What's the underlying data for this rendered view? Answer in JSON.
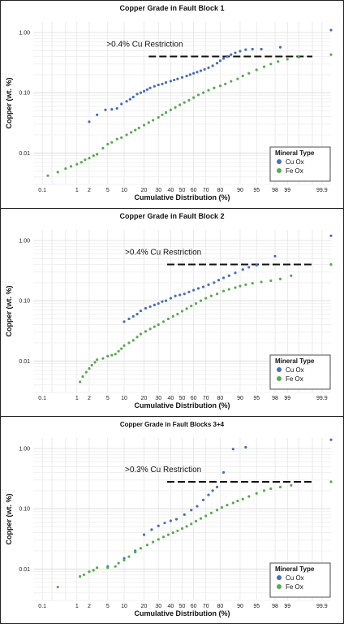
{
  "chart_data": [
    {
      "type": "scatter",
      "title": "Copper Grade in  Fault Block 1",
      "xlabel": "Cumulative Distribution (%)",
      "ylabel": "Copper (wt. %)",
      "x_scale": "probability",
      "y_scale": "log",
      "x_ticks": [
        "0.1",
        "1",
        "2",
        "5",
        "10",
        "20",
        "30",
        "40",
        "50",
        "60",
        "70",
        "80",
        "90",
        "95",
        "98",
        "99",
        "99.9"
      ],
      "y_ticks": [
        "0.01",
        "0.10",
        "1.00"
      ],
      "ylim": [
        0.003,
        1.5
      ],
      "grid": true,
      "legend_position": "bottom-right",
      "legend_title": "Mineral Type",
      "annotation": {
        "text": ">0.4% Cu Restriction",
        "line_y": 0.4,
        "line_x_from": 23,
        "line_x_to": 99.8
      },
      "series": [
        {
          "name": "Cu Ox",
          "color": "#4a6fb5",
          "points": [
            [
              2,
              0.033
            ],
            [
              3,
              0.043
            ],
            [
              4.5,
              0.052
            ],
            [
              6,
              0.053
            ],
            [
              7.5,
              0.055
            ],
            [
              9,
              0.065
            ],
            [
              11,
              0.072
            ],
            [
              12.5,
              0.078
            ],
            [
              14,
              0.085
            ],
            [
              16,
              0.095
            ],
            [
              18,
              0.1
            ],
            [
              20,
              0.106
            ],
            [
              22,
              0.113
            ],
            [
              24,
              0.12
            ],
            [
              27,
              0.128
            ],
            [
              30,
              0.135
            ],
            [
              33,
              0.14
            ],
            [
              36,
              0.148
            ],
            [
              40,
              0.156
            ],
            [
              43,
              0.163
            ],
            [
              46,
              0.17
            ],
            [
              50,
              0.18
            ],
            [
              54,
              0.19
            ],
            [
              57,
              0.2
            ],
            [
              60,
              0.21
            ],
            [
              63,
              0.22
            ],
            [
              66,
              0.232
            ],
            [
              69,
              0.245
            ],
            [
              72,
              0.26
            ],
            [
              75,
              0.28
            ],
            [
              78,
              0.31
            ],
            [
              80,
              0.34
            ],
            [
              82,
              0.37
            ],
            [
              84,
              0.4
            ],
            [
              86,
              0.43
            ],
            [
              88,
              0.46
            ],
            [
              90,
              0.49
            ],
            [
              92,
              0.52
            ],
            [
              94,
              0.53
            ],
            [
              96,
              0.53
            ],
            [
              98.5,
              0.57
            ],
            [
              99.95,
              1.1
            ]
          ]
        },
        {
          "name": "Fe Ox",
          "color": "#5aaa4f",
          "points": [
            [
              0.15,
              0.0042
            ],
            [
              0.3,
              0.0048
            ],
            [
              0.5,
              0.0055
            ],
            [
              0.7,
              0.006
            ],
            [
              1,
              0.0065
            ],
            [
              1.3,
              0.007
            ],
            [
              1.6,
              0.0077
            ],
            [
              2,
              0.0082
            ],
            [
              2.5,
              0.009
            ],
            [
              3,
              0.0095
            ],
            [
              4,
              0.012
            ],
            [
              5,
              0.014
            ],
            [
              6,
              0.015
            ],
            [
              7.5,
              0.017
            ],
            [
              9,
              0.018
            ],
            [
              11,
              0.02
            ],
            [
              13,
              0.022
            ],
            [
              15,
              0.024
            ],
            [
              17,
              0.026
            ],
            [
              20,
              0.029
            ],
            [
              23,
              0.032
            ],
            [
              26,
              0.035
            ],
            [
              30,
              0.039
            ],
            [
              33,
              0.043
            ],
            [
              36,
              0.047
            ],
            [
              40,
              0.052
            ],
            [
              44,
              0.057
            ],
            [
              48,
              0.063
            ],
            [
              52,
              0.069
            ],
            [
              56,
              0.075
            ],
            [
              60,
              0.083
            ],
            [
              64,
              0.092
            ],
            [
              68,
              0.1
            ],
            [
              72,
              0.11
            ],
            [
              76,
              0.12
            ],
            [
              80,
              0.13
            ],
            [
              83,
              0.14
            ],
            [
              86,
              0.155
            ],
            [
              89,
              0.17
            ],
            [
              91,
              0.19
            ],
            [
              93,
              0.21
            ],
            [
              95,
              0.24
            ],
            [
              96.5,
              0.27
            ],
            [
              97.5,
              0.3
            ],
            [
              98.3,
              0.33
            ],
            [
              99,
              0.36
            ],
            [
              99.5,
              0.39
            ],
            [
              99.95,
              0.43
            ]
          ]
        }
      ]
    },
    {
      "type": "scatter",
      "title": "Copper Grade in  Fault Block 2",
      "xlabel": "Cumulative Distribution (%)",
      "ylabel": "Copper (wt. %)",
      "x_scale": "probability",
      "y_scale": "log",
      "x_ticks": [
        "0.1",
        "1",
        "2",
        "5",
        "10",
        "20",
        "30",
        "40",
        "50",
        "60",
        "70",
        "80",
        "90",
        "95",
        "98",
        "99",
        "99.9"
      ],
      "y_ticks": [
        "0.01",
        "0.10",
        "1.00"
      ],
      "ylim": [
        0.003,
        1.5
      ],
      "grid": true,
      "legend_position": "bottom-right",
      "legend_title": "Mineral Type",
      "annotation": {
        "text": ">0.4% Cu Restriction",
        "line_y": 0.4,
        "line_x_from": 37,
        "line_x_to": 99.8
      },
      "series": [
        {
          "name": "Cu Ox",
          "color": "#4a6fb5",
          "points": [
            [
              10,
              0.045
            ],
            [
              12,
              0.05
            ],
            [
              14,
              0.055
            ],
            [
              16,
              0.06
            ],
            [
              18,
              0.068
            ],
            [
              21,
              0.075
            ],
            [
              24,
              0.08
            ],
            [
              27,
              0.085
            ],
            [
              30,
              0.09
            ],
            [
              33,
              0.097
            ],
            [
              36,
              0.1
            ],
            [
              40,
              0.11
            ],
            [
              44,
              0.12
            ],
            [
              48,
              0.125
            ],
            [
              52,
              0.13
            ],
            [
              56,
              0.14
            ],
            [
              60,
              0.15
            ],
            [
              64,
              0.16
            ],
            [
              68,
              0.17
            ],
            [
              72,
              0.185
            ],
            [
              76,
              0.2
            ],
            [
              79,
              0.22
            ],
            [
              82,
              0.24
            ],
            [
              85,
              0.26
            ],
            [
              88,
              0.29
            ],
            [
              91,
              0.33
            ],
            [
              93,
              0.36
            ],
            [
              95,
              0.39
            ],
            [
              98,
              0.55
            ],
            [
              99.95,
              1.2
            ]
          ]
        },
        {
          "name": "Fe Ox",
          "color": "#5aaa4f",
          "points": [
            [
              1.2,
              0.0045
            ],
            [
              1.4,
              0.0055
            ],
            [
              1.7,
              0.0065
            ],
            [
              2,
              0.0075
            ],
            [
              2.3,
              0.0085
            ],
            [
              2.7,
              0.0095
            ],
            [
              3,
              0.0105
            ],
            [
              4,
              0.011
            ],
            [
              5,
              0.012
            ],
            [
              6,
              0.0125
            ],
            [
              7,
              0.013
            ],
            [
              8,
              0.0145
            ],
            [
              9,
              0.016
            ],
            [
              10,
              0.018
            ],
            [
              12,
              0.02
            ],
            [
              14,
              0.022
            ],
            [
              16,
              0.025
            ],
            [
              18,
              0.028
            ],
            [
              21,
              0.031
            ],
            [
              24,
              0.034
            ],
            [
              27,
              0.037
            ],
            [
              30,
              0.04
            ],
            [
              34,
              0.045
            ],
            [
              38,
              0.05
            ],
            [
              42,
              0.055
            ],
            [
              46,
              0.06
            ],
            [
              50,
              0.067
            ],
            [
              54,
              0.074
            ],
            [
              58,
              0.082
            ],
            [
              62,
              0.09
            ],
            [
              66,
              0.1
            ],
            [
              70,
              0.11
            ],
            [
              74,
              0.12
            ],
            [
              78,
              0.13
            ],
            [
              82,
              0.145
            ],
            [
              85,
              0.155
            ],
            [
              88,
              0.165
            ],
            [
              90,
              0.175
            ],
            [
              92,
              0.185
            ],
            [
              94,
              0.195
            ],
            [
              96,
              0.205
            ],
            [
              97.5,
              0.215
            ],
            [
              98.5,
              0.23
            ],
            [
              99.2,
              0.26
            ],
            [
              99.95,
              0.4
            ]
          ]
        }
      ]
    },
    {
      "type": "scatter",
      "title": "Copper Grade in  Fault Blocks 3+4",
      "xlabel": "Cumulative Distribution (%)",
      "ylabel": "Copper (wt. %)",
      "x_scale": "probability",
      "y_scale": "log",
      "x_ticks": [
        "0.1",
        "1",
        "2",
        "5",
        "10",
        "20",
        "30",
        "40",
        "50",
        "60",
        "70",
        "80",
        "90",
        "95",
        "98",
        "99",
        "99.9"
      ],
      "y_ticks": [
        "0.01",
        "0.10",
        "1.00"
      ],
      "ylim": [
        0.003,
        1.5
      ],
      "grid": true,
      "legend_position": "bottom-right",
      "legend_title": "Mineral Type",
      "annotation": {
        "text": ">0.3% Cu Restriction",
        "line_y": 0.28,
        "line_x_from": 37,
        "line_x_to": 99.8
      },
      "series": [
        {
          "name": "Cu Ox",
          "color": "#4a6fb5",
          "points": [
            [
              5,
              0.011
            ],
            [
              10,
              0.015
            ],
            [
              15,
              0.02
            ],
            [
              20,
              0.037
            ],
            [
              25,
              0.045
            ],
            [
              30,
              0.052
            ],
            [
              35,
              0.058
            ],
            [
              40,
              0.063
            ],
            [
              45,
              0.067
            ],
            [
              52,
              0.08
            ],
            [
              58,
              0.095
            ],
            [
              63,
              0.11
            ],
            [
              68,
              0.14
            ],
            [
              72,
              0.17
            ],
            [
              75,
              0.2
            ],
            [
              78,
              0.23
            ],
            [
              82,
              0.4
            ],
            [
              87,
              0.98
            ],
            [
              92,
              1.05
            ],
            [
              99.95,
              1.4
            ]
          ]
        },
        {
          "name": "Fe Ox",
          "color": "#5aaa4f",
          "points": [
            [
              0.3,
              0.005
            ],
            [
              1.2,
              0.0075
            ],
            [
              1.5,
              0.008
            ],
            [
              2,
              0.009
            ],
            [
              2.5,
              0.0095
            ],
            [
              3,
              0.0105
            ],
            [
              5,
              0.0105
            ],
            [
              7,
              0.011
            ],
            [
              8,
              0.0125
            ],
            [
              10,
              0.014
            ],
            [
              12,
              0.016
            ],
            [
              15,
              0.019
            ],
            [
              18,
              0.022
            ],
            [
              22,
              0.025
            ],
            [
              26,
              0.028
            ],
            [
              30,
              0.031
            ],
            [
              34,
              0.034
            ],
            [
              38,
              0.037
            ],
            [
              42,
              0.04
            ],
            [
              46,
              0.043
            ],
            [
              50,
              0.047
            ],
            [
              54,
              0.051
            ],
            [
              58,
              0.056
            ],
            [
              62,
              0.062
            ],
            [
              66,
              0.069
            ],
            [
              70,
              0.076
            ],
            [
              74,
              0.085
            ],
            [
              78,
              0.095
            ],
            [
              81,
              0.105
            ],
            [
              84,
              0.115
            ],
            [
              87,
              0.125
            ],
            [
              89,
              0.135
            ],
            [
              91,
              0.145
            ],
            [
              93,
              0.16
            ],
            [
              95,
              0.18
            ],
            [
              96.5,
              0.2
            ],
            [
              97.5,
              0.215
            ],
            [
              98.5,
              0.23
            ],
            [
              99.2,
              0.245
            ],
            [
              99.95,
              0.28
            ]
          ]
        }
      ]
    }
  ]
}
